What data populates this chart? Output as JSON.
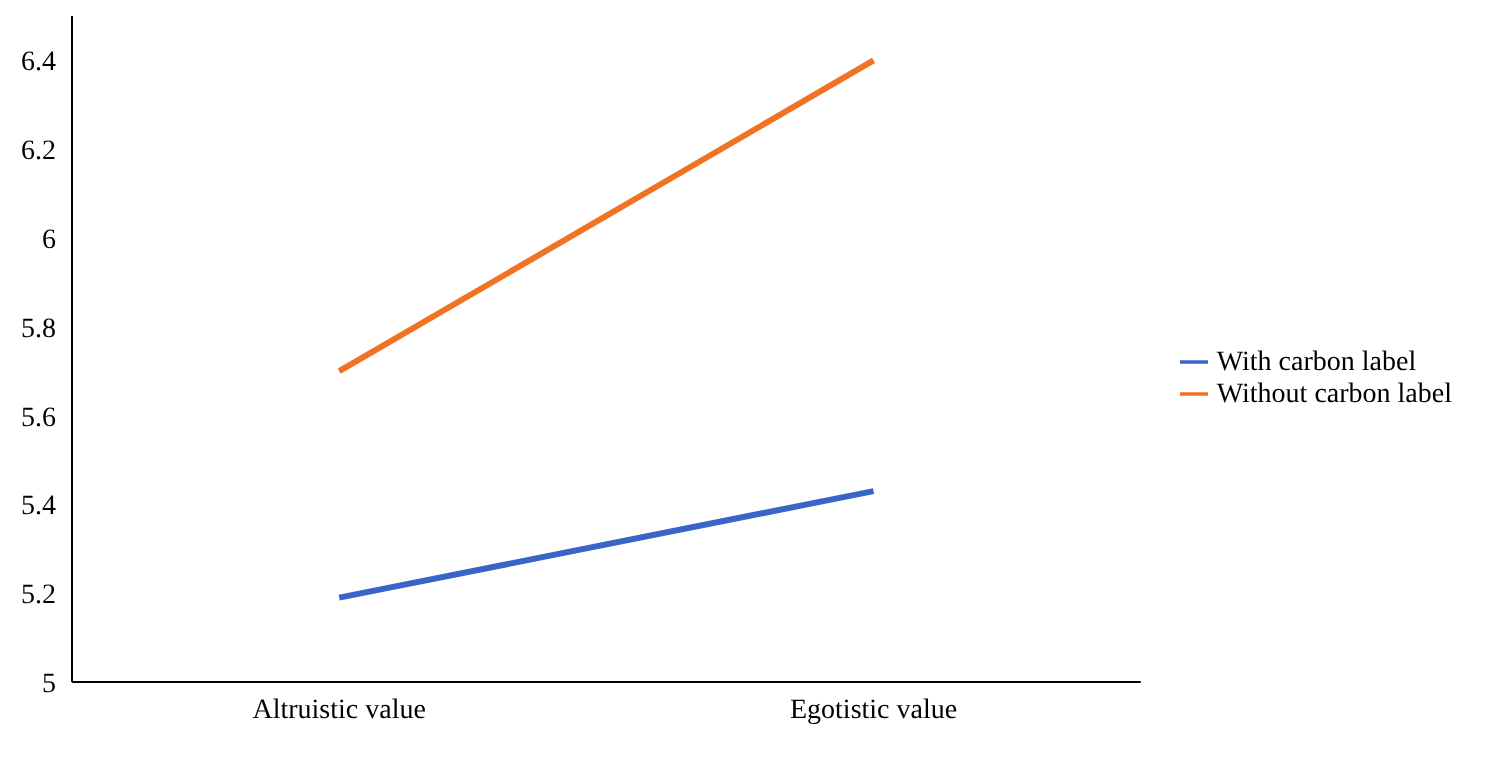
{
  "chart_data": {
    "type": "line",
    "categories": [
      "Altruistic value",
      "Egotistic value"
    ],
    "series": [
      {
        "name": "With carbon label",
        "color": "#3a64c8",
        "values": [
          5.19,
          5.43
        ]
      },
      {
        "name": "Without carbon label",
        "color": "#f07324",
        "values": [
          5.7,
          6.4
        ]
      }
    ],
    "ylim": [
      5,
      6.5
    ],
    "yticks": [
      5,
      5.2,
      5.4,
      5.6,
      5.8,
      6,
      6.2,
      6.4
    ],
    "grid": false,
    "legend": "right",
    "marker": "none",
    "line_style": "solid"
  }
}
